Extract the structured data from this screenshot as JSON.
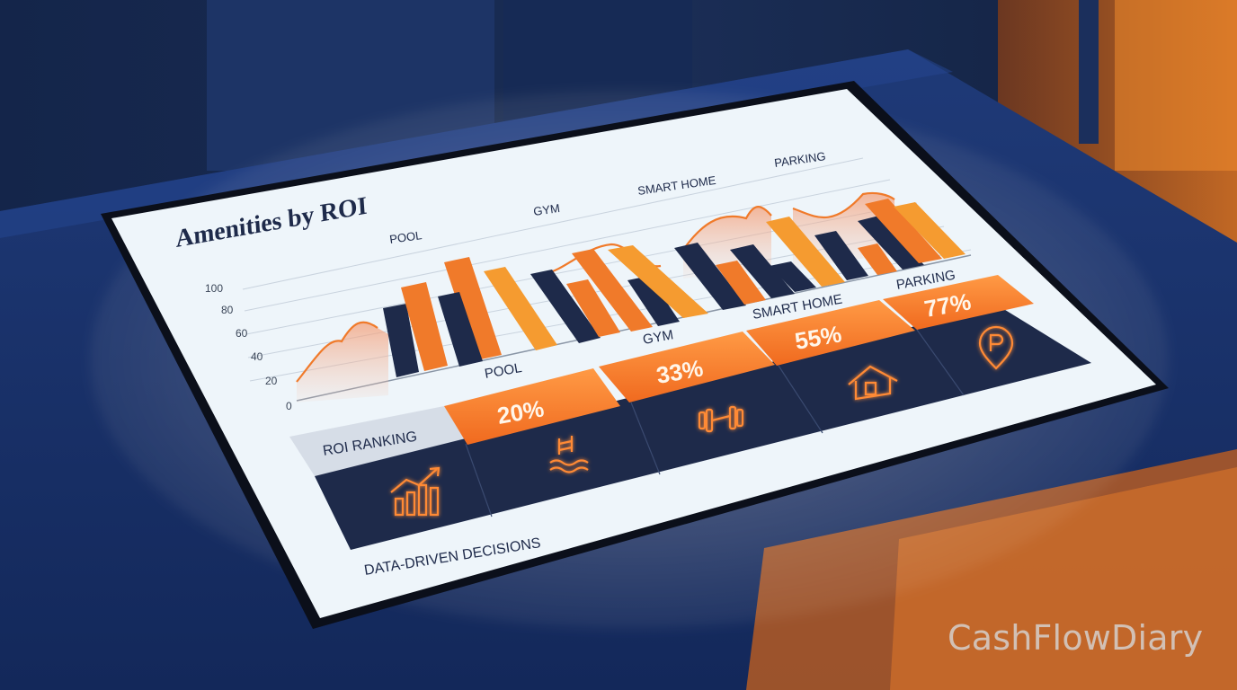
{
  "screen": {
    "title": "Amenities by ROI",
    "top_labels": [
      "POOL",
      "GYM",
      "SMART HOME",
      "PARKING"
    ],
    "y_ticks": [
      "100",
      "80",
      "60",
      "40",
      "20",
      "0"
    ],
    "ranking_label": "ROI RANKING",
    "footer": "DATA-DRIVEN DECISIONS",
    "tiles": [
      {
        "label": "POOL",
        "value": "20%",
        "icon": "pool-icon"
      },
      {
        "label": "GYM",
        "value": "33%",
        "icon": "dumbbell-icon"
      },
      {
        "label": "SMART HOME",
        "value": "55%",
        "icon": "house-icon"
      },
      {
        "label": "PARKING",
        "value": "77%",
        "icon": "parking-pin-icon"
      }
    ],
    "ranking_icon": "growth-chart-icon"
  },
  "colors": {
    "navy": "#1e2a4a",
    "orange": "#f07a2a",
    "amber": "#f59b30",
    "screen_bg": "#eef5fa"
  },
  "watermark": "CashFlowDiary"
}
